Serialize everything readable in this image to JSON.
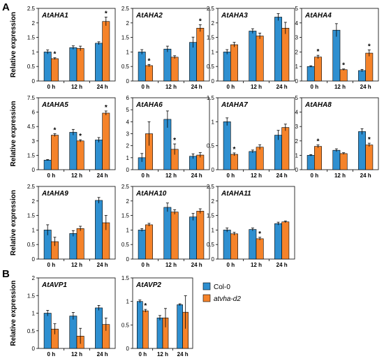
{
  "panel_labels": [
    "A",
    "B"
  ],
  "y_axis_label": "Relative expression",
  "colors": {
    "col0": "#2e8fd0",
    "mutant": "#f5832a"
  },
  "legend": [
    {
      "label": "Col-0",
      "color": "#2e8fd0"
    },
    {
      "label": "atvha-d2",
      "color": "#f5832a"
    }
  ],
  "chart_data": [
    {
      "type": "bar",
      "title": "AtAHA1",
      "categories": [
        "0 h",
        "12 h",
        "24 h"
      ],
      "ylim": [
        0,
        2.5
      ],
      "ytick_labels": [
        "0",
        "0.5",
        "1",
        "1.5",
        "2",
        "2.5"
      ],
      "series": [
        {
          "name": "Col-0",
          "values": [
            1.0,
            1.15,
            1.3
          ],
          "errors": [
            0.07,
            0.06,
            0.05
          ]
        },
        {
          "name": "atvha-d2",
          "values": [
            0.77,
            1.12,
            2.05
          ],
          "errors": [
            0.03,
            0.08,
            0.15
          ]
        }
      ],
      "significance": [
        {
          "category": 0,
          "series": 1,
          "mark": "*"
        },
        {
          "category": 2,
          "series": 1,
          "mark": "*"
        }
      ]
    },
    {
      "type": "bar",
      "title": "AtAHA2",
      "categories": [
        "0 h",
        "12 h",
        "24 h"
      ],
      "ylim": [
        0,
        2.5
      ],
      "ytick_labels": [
        "0",
        "0.5",
        "1",
        "1.5",
        "2",
        "2.5"
      ],
      "series": [
        {
          "name": "Col-0",
          "values": [
            1.0,
            1.1,
            1.33
          ],
          "errors": [
            0.08,
            0.1,
            0.18
          ]
        },
        {
          "name": "atvha-d2",
          "values": [
            0.53,
            0.82,
            1.82
          ],
          "errors": [
            0.04,
            0.05,
            0.12
          ]
        }
      ],
      "significance": [
        {
          "category": 0,
          "series": 1,
          "mark": "*"
        },
        {
          "category": 2,
          "series": 1,
          "mark": "*"
        }
      ]
    },
    {
      "type": "bar",
      "title": "AtAHA3",
      "categories": [
        "0 h",
        "12 h",
        "24 h"
      ],
      "ylim": [
        0,
        2.5
      ],
      "ytick_labels": [
        "0",
        "0.5",
        "1",
        "1.5",
        "2",
        "2.5"
      ],
      "series": [
        {
          "name": "Col-0",
          "values": [
            1.0,
            1.72,
            2.2
          ],
          "errors": [
            0.08,
            0.08,
            0.12
          ]
        },
        {
          "name": "atvha-d2",
          "values": [
            1.25,
            1.55,
            1.82
          ],
          "errors": [
            0.08,
            0.1,
            0.2
          ]
        }
      ],
      "significance": []
    },
    {
      "type": "bar",
      "title": "AtAHA4",
      "categories": [
        "0 h",
        "12 h",
        "24 h"
      ],
      "ylim": [
        0,
        5
      ],
      "ytick_labels": [
        "0",
        "1",
        "2",
        "3",
        "4",
        "5"
      ],
      "series": [
        {
          "name": "Col-0",
          "values": [
            1.0,
            3.5,
            0.72
          ],
          "errors": [
            0.05,
            0.45,
            0.08
          ]
        },
        {
          "name": "atvha-d2",
          "values": [
            1.65,
            0.78,
            1.92
          ],
          "errors": [
            0.12,
            0.05,
            0.22
          ]
        }
      ],
      "significance": [
        {
          "category": 0,
          "series": 1,
          "mark": "*"
        },
        {
          "category": 1,
          "series": 1,
          "mark": "*"
        },
        {
          "category": 2,
          "series": 1,
          "mark": "*"
        }
      ]
    },
    {
      "type": "bar",
      "title": "AtAHA5",
      "categories": [
        "0 h",
        "12 h",
        "24 h"
      ],
      "ylim": [
        0,
        7.5
      ],
      "ytick_labels": [
        "0",
        "1.5",
        "3",
        "4.5",
        "6",
        "7.5"
      ],
      "series": [
        {
          "name": "Col-0",
          "values": [
            1.0,
            3.9,
            3.1
          ],
          "errors": [
            0.05,
            0.3,
            0.25
          ]
        },
        {
          "name": "atvha-d2",
          "values": [
            3.6,
            3.0,
            5.9
          ],
          "errors": [
            0.15,
            0.12,
            0.22
          ]
        }
      ],
      "significance": [
        {
          "category": 0,
          "series": 1,
          "mark": "*"
        },
        {
          "category": 1,
          "series": 1,
          "mark": "*"
        },
        {
          "category": 2,
          "series": 1,
          "mark": "*"
        }
      ]
    },
    {
      "type": "bar",
      "title": "AtAHA6",
      "categories": [
        "0 h",
        "12 h",
        "24 h"
      ],
      "ylim": [
        0,
        6
      ],
      "ytick_labels": [
        "0",
        "1",
        "2",
        "3",
        "4",
        "5",
        "6"
      ],
      "series": [
        {
          "name": "Col-0",
          "values": [
            1.0,
            4.2,
            1.12
          ],
          "errors": [
            0.35,
            0.7,
            0.2
          ]
        },
        {
          "name": "atvha-d2",
          "values": [
            3.0,
            1.7,
            1.22
          ],
          "errors": [
            1.0,
            0.45,
            0.2
          ]
        }
      ],
      "significance": [
        {
          "category": 1,
          "series": 1,
          "mark": "*"
        }
      ]
    },
    {
      "type": "bar",
      "title": "AtAHA7",
      "categories": [
        "0 h",
        "12 h",
        "24 h"
      ],
      "ylim": [
        0,
        1.5
      ],
      "ytick_labels": [
        "0",
        "0.5",
        "1",
        "1.5"
      ],
      "series": [
        {
          "name": "Col-0",
          "values": [
            1.0,
            0.38,
            0.72
          ],
          "errors": [
            0.08,
            0.03,
            0.1
          ]
        },
        {
          "name": "atvha-d2",
          "values": [
            0.32,
            0.47,
            0.88
          ],
          "errors": [
            0.03,
            0.05,
            0.07
          ]
        }
      ],
      "significance": [
        {
          "category": 0,
          "series": 1,
          "mark": "*"
        }
      ]
    },
    {
      "type": "bar",
      "title": "AtAHA8",
      "categories": [
        "0 h",
        "12 h",
        "24 h"
      ],
      "ylim": [
        0,
        5
      ],
      "ytick_labels": [
        "0",
        "1",
        "2",
        "3",
        "4",
        "5"
      ],
      "series": [
        {
          "name": "Col-0",
          "values": [
            1.0,
            1.35,
            2.65
          ],
          "errors": [
            0.05,
            0.1,
            0.2
          ]
        },
        {
          "name": "atvha-d2",
          "values": [
            1.62,
            1.12,
            1.72
          ],
          "errors": [
            0.1,
            0.06,
            0.12
          ]
        }
      ],
      "significance": [
        {
          "category": 0,
          "series": 1,
          "mark": "*"
        },
        {
          "category": 2,
          "series": 1,
          "mark": "*"
        }
      ]
    },
    {
      "type": "bar",
      "title": "AtAHA9",
      "categories": [
        "0 h",
        "12 h",
        "24 h"
      ],
      "ylim": [
        0,
        2.5
      ],
      "ytick_labels": [
        "0",
        "0.5",
        "1",
        "1.5",
        "2",
        "2.5"
      ],
      "series": [
        {
          "name": "Col-0",
          "values": [
            1.0,
            0.88,
            2.02
          ],
          "errors": [
            0.18,
            0.1,
            0.1
          ]
        },
        {
          "name": "atvha-d2",
          "values": [
            0.6,
            1.05,
            1.25
          ],
          "errors": [
            0.15,
            0.08,
            0.25
          ]
        }
      ],
      "significance": []
    },
    {
      "type": "bar",
      "title": "AtAHA10",
      "categories": [
        "0 h",
        "12 h",
        "24 h"
      ],
      "ylim": [
        0,
        2.5
      ],
      "ytick_labels": [
        "0",
        "0.5",
        "1",
        "1.5",
        "2",
        "2.5"
      ],
      "series": [
        {
          "name": "Col-0",
          "values": [
            1.0,
            1.78,
            1.45
          ],
          "errors": [
            0.05,
            0.15,
            0.12
          ]
        },
        {
          "name": "atvha-d2",
          "values": [
            1.18,
            1.62,
            1.65
          ],
          "errors": [
            0.05,
            0.08,
            0.08
          ]
        }
      ],
      "significance": []
    },
    {
      "type": "bar",
      "title": "AtAHA11",
      "categories": [
        "0 h",
        "12 h",
        "24 h"
      ],
      "ylim": [
        0,
        2.5
      ],
      "ytick_labels": [
        "0",
        "0.5",
        "1",
        "1.5",
        "2",
        "2.5"
      ],
      "series": [
        {
          "name": "Col-0",
          "values": [
            1.0,
            1.02,
            1.22
          ],
          "errors": [
            0.07,
            0.05,
            0.05
          ]
        },
        {
          "name": "atvha-d2",
          "values": [
            0.87,
            0.7,
            1.28
          ],
          "errors": [
            0.05,
            0.05,
            0.03
          ]
        }
      ],
      "significance": [
        {
          "category": 1,
          "series": 1,
          "mark": "*"
        }
      ]
    },
    {
      "type": "bar",
      "title": "AtAVP1",
      "categories": [
        "0 h",
        "12 h",
        "24 h"
      ],
      "ylim": [
        0,
        2
      ],
      "ytick_labels": [
        "0",
        "0.5",
        "1",
        "1.5",
        "2"
      ],
      "series": [
        {
          "name": "Col-0",
          "values": [
            1.0,
            0.92,
            1.15
          ],
          "errors": [
            0.08,
            0.1,
            0.07
          ]
        },
        {
          "name": "atvha-d2",
          "values": [
            0.55,
            0.35,
            0.68
          ],
          "errors": [
            0.15,
            0.22,
            0.18
          ]
        }
      ],
      "significance": []
    },
    {
      "type": "bar",
      "title": "AtAVP2",
      "categories": [
        "0 h",
        "12 h",
        "24 h"
      ],
      "ylim": [
        0,
        1.5
      ],
      "ytick_labels": [
        "0",
        "0.5",
        "1",
        "1.5"
      ],
      "series": [
        {
          "name": "Col-0",
          "values": [
            1.0,
            0.65,
            0.93
          ],
          "errors": [
            0.03,
            0.05,
            0.02
          ]
        },
        {
          "name": "atvha-d2",
          "values": [
            0.8,
            0.65,
            0.77
          ],
          "errors": [
            0.03,
            0.2,
            0.35
          ]
        }
      ],
      "significance": [
        {
          "category": 0,
          "series": 1,
          "mark": "*"
        }
      ]
    }
  ]
}
